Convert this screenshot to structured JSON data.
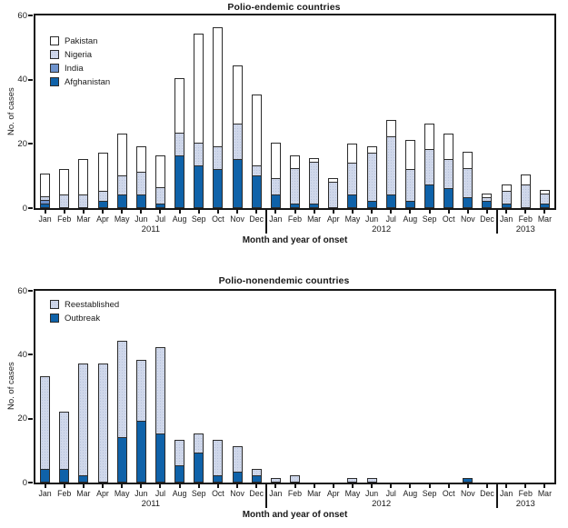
{
  "figure": {
    "background": "#ffffff",
    "frame_color": "#161616",
    "colors": {
      "dark_blue": "#0f62a9",
      "medium_blue": "#6e93cd",
      "light_blue": "#cfd7ea",
      "white": "#ffffff"
    }
  },
  "chart_data": [
    {
      "type": "bar",
      "stacked": true,
      "title": "Polio-endemic countries",
      "ylabel": "No. of cases",
      "xlabel": "Month and year of onset",
      "ylim": [
        0,
        60
      ],
      "yticks": [
        0,
        20,
        40,
        60
      ],
      "grid": false,
      "legend_position": "top-left-inside",
      "categories": [
        "Jan",
        "Feb",
        "Mar",
        "Apr",
        "May",
        "Jun",
        "Jul",
        "Aug",
        "Sep",
        "Oct",
        "Nov",
        "Dec",
        "Jan",
        "Feb",
        "Mar",
        "Apr",
        "May",
        "Jun",
        "Jul",
        "Aug",
        "Sep",
        "Oct",
        "Nov",
        "Dec",
        "Jan",
        "Feb",
        "Mar"
      ],
      "year_labels": [
        {
          "label": "2011",
          "center_index": 5.5
        },
        {
          "label": "2012",
          "center_index": 17.5
        },
        {
          "label": "2013",
          "center_index": 25
        }
      ],
      "separators_after": [
        11,
        23
      ],
      "legend": [
        {
          "label": "Pakistan",
          "color": "#ffffff",
          "pattern": "none"
        },
        {
          "label": "Nigeria",
          "color": "#cfd7ea",
          "pattern": "dots"
        },
        {
          "label": "India",
          "color": "#6e93cd",
          "pattern": "none"
        },
        {
          "label": "Afghanistan",
          "color": "#0f62a9",
          "pattern": "none"
        }
      ],
      "series": [
        {
          "name": "Afghanistan",
          "color": "#0f62a9",
          "pattern": "none",
          "values": [
            1,
            0,
            0,
            2,
            4,
            4,
            1,
            16,
            13,
            12,
            15,
            10,
            4,
            1,
            1,
            0,
            4,
            2,
            4,
            2,
            7,
            6,
            3,
            2,
            1,
            0,
            1
          ]
        },
        {
          "name": "India",
          "color": "#6e93cd",
          "pattern": "none",
          "values": [
            1,
            0,
            0,
            0,
            0,
            0,
            0,
            0,
            0,
            0,
            0,
            0,
            0,
            0,
            0,
            0,
            0,
            0,
            0,
            0,
            0,
            0,
            0,
            0,
            0,
            0,
            0
          ]
        },
        {
          "name": "Nigeria",
          "color": "#cfd7ea",
          "pattern": "dots",
          "values": [
            1,
            4,
            4,
            3,
            6,
            7,
            5,
            7,
            7,
            7,
            11,
            3,
            5,
            11,
            13,
            8,
            10,
            15,
            18,
            10,
            11,
            9,
            9,
            1,
            4,
            7,
            3
          ]
        },
        {
          "name": "Pakistan",
          "color": "#ffffff",
          "pattern": "none",
          "values": [
            7,
            8,
            11,
            12,
            13,
            8,
            10,
            17,
            34,
            37,
            18,
            22,
            11,
            4,
            1,
            1,
            6,
            2,
            5,
            9,
            8,
            8,
            5,
            1,
            2,
            3,
            1
          ]
        }
      ]
    },
    {
      "type": "bar",
      "stacked": true,
      "title": "Polio-nonendemic countries",
      "ylabel": "No. of cases",
      "xlabel": "Month and year of onset",
      "ylim": [
        0,
        60
      ],
      "yticks": [
        0,
        20,
        40,
        60
      ],
      "grid": false,
      "legend_position": "top-left-inside",
      "categories": [
        "Jan",
        "Feb",
        "Mar",
        "Apr",
        "May",
        "Jun",
        "Jul",
        "Aug",
        "Sep",
        "Oct",
        "Nov",
        "Dec",
        "Jan",
        "Feb",
        "Mar",
        "Apr",
        "May",
        "Jun",
        "Jul",
        "Aug",
        "Sep",
        "Oct",
        "Nov",
        "Dec",
        "Jan",
        "Feb",
        "Mar"
      ],
      "year_labels": [
        {
          "label": "2011",
          "center_index": 5.5
        },
        {
          "label": "2012",
          "center_index": 17.5
        },
        {
          "label": "2013",
          "center_index": 25
        }
      ],
      "separators_after": [
        11,
        23
      ],
      "legend": [
        {
          "label": "Reestablished",
          "color": "#cfd7ea",
          "pattern": "dots"
        },
        {
          "label": "Outbreak",
          "color": "#0f62a9",
          "pattern": "none"
        }
      ],
      "series": [
        {
          "name": "Outbreak",
          "color": "#0f62a9",
          "pattern": "none",
          "values": [
            4,
            4,
            2,
            0,
            14,
            19,
            15,
            5,
            9,
            2,
            3,
            2,
            0,
            0,
            0,
            0,
            0,
            0,
            0,
            0,
            0,
            0,
            1,
            0,
            0,
            0,
            0
          ]
        },
        {
          "name": "Reestablished",
          "color": "#cfd7ea",
          "pattern": "dots",
          "values": [
            29,
            18,
            35,
            37,
            30,
            19,
            27,
            8,
            6,
            11,
            8,
            2,
            1,
            2,
            0,
            0,
            1,
            1,
            0,
            0,
            0,
            0,
            0,
            0,
            0,
            0,
            0
          ]
        }
      ]
    }
  ]
}
